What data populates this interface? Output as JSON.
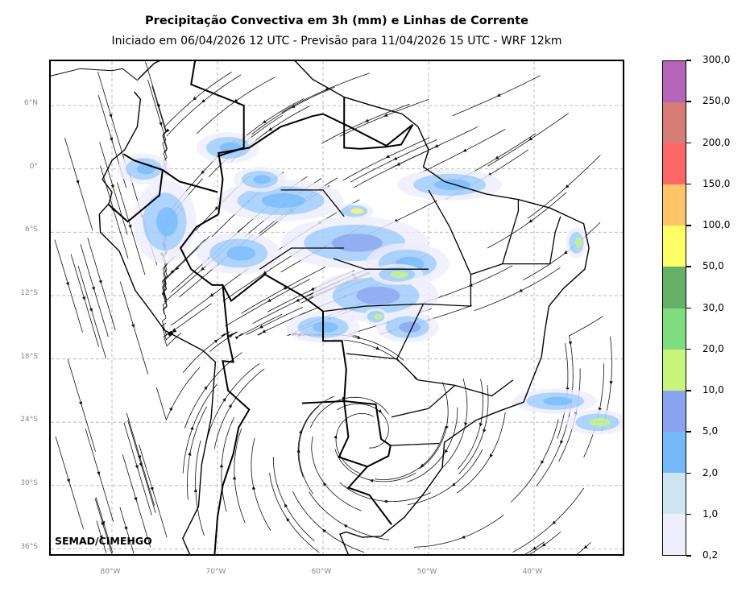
{
  "title": "Precipitação Convectiva em 3h (mm) e Linhas de Corrente",
  "subtitle": "Iniciado em 06/04/2026 12 UTC - Previsão para 11/04/2026 15 UTC - WRF 12km",
  "credit": "SEMAD/CIMEHGO",
  "map": {
    "lat_labels": [
      "6°N",
      "0°",
      "6°S",
      "12°S",
      "18°S",
      "24°S",
      "30°S",
      "36°S"
    ],
    "lon_labels": [
      "80°W",
      "70°W",
      "60°W",
      "50°W",
      "40°W"
    ],
    "lat_values": [
      6,
      0,
      -6,
      -12,
      -18,
      -24,
      -30,
      -36
    ],
    "lon_values": [
      -80,
      -70,
      -60,
      -50,
      -40
    ],
    "extent": {
      "lon_min": -85.8,
      "lon_max": -31.3,
      "lat_min": -36.8,
      "lat_max": 10.2
    }
  },
  "colorbar": {
    "levels": [
      "0,2",
      "1,0",
      "2,0",
      "5,0",
      "10,0",
      "20,0",
      "30,0",
      "50,0",
      "100,0",
      "150,0",
      "200,0",
      "250,0",
      "300,0"
    ],
    "colors": [
      "#eeeefc",
      "#cfe6f0",
      "#76b9fb",
      "#8aa3ee",
      "#c9f57d",
      "#7fdc7f",
      "#67b067",
      "#ffff66",
      "#ffc566",
      "#ff6666",
      "#d77b75",
      "#b565b8"
    ]
  }
}
